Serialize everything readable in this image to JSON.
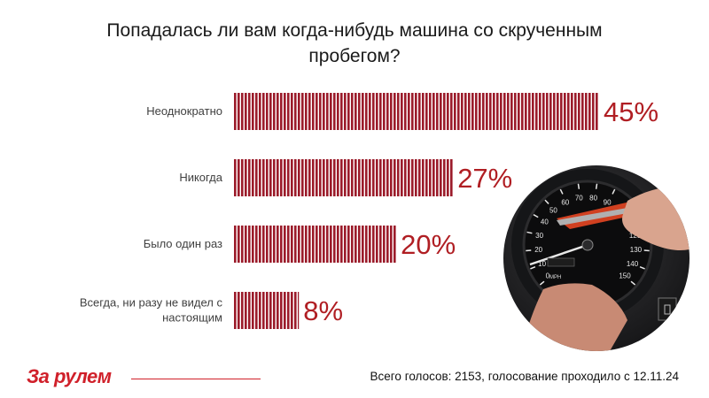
{
  "title": {
    "line1": "Попадалась ли вам когда-нибудь машина со скрученным",
    "line2": "пробегом?"
  },
  "colors": {
    "bar": "#9b1b2a",
    "value_text": "#b01e23",
    "brand": "#d0202a"
  },
  "chart_data": {
    "type": "bar",
    "orientation": "horizontal",
    "categories": [
      [
        "Неоднократно"
      ],
      [
        "Никогда"
      ],
      [
        "Было один раз"
      ],
      [
        "Всегда, ни разу не видел с",
        "настоящим"
      ]
    ],
    "values": [
      45,
      27,
      20,
      8
    ],
    "data_labels": [
      "45%",
      "27%",
      "20%",
      "8%"
    ],
    "xlim": [
      0,
      45
    ],
    "grid": false,
    "legend": "none"
  },
  "photo": {
    "description_icon": "odometer-tampering-photo"
  },
  "footer": {
    "logo": "За рулем",
    "text": "Всего голосов: 2153, голосование проходило с 12.11.24"
  }
}
